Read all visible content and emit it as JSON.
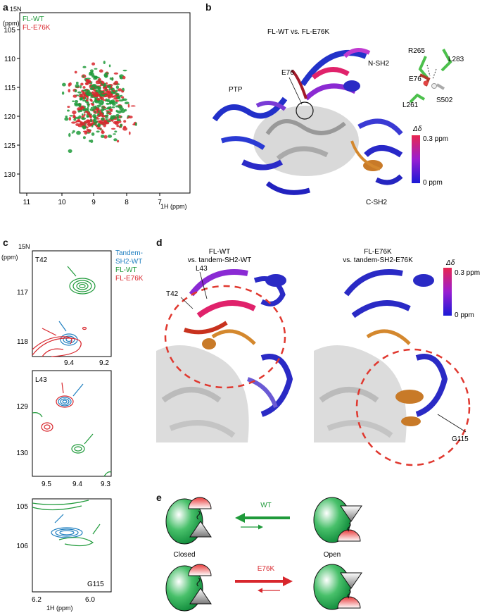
{
  "panel_labels": {
    "a": "a",
    "b": "b",
    "c": "c",
    "d": "d",
    "e": "e"
  },
  "colors": {
    "green": "#1f9a3a",
    "red": "#d8272d",
    "blue": "#1f7fc0",
    "dash": "#e0382f"
  },
  "panel_a": {
    "axis_y_label": "15N",
    "axis_y_unit": "(ppm)",
    "axis_x_label": "1H (ppm)",
    "legend": [
      "FL-WT",
      "FL-E76K"
    ],
    "y_ticks": [
      "105",
      "110",
      "115",
      "120",
      "125",
      "130"
    ],
    "x_ticks": [
      "11",
      "10",
      "9",
      "8",
      "7"
    ]
  },
  "panel_b": {
    "title": "FL-WT vs. FL-E76K",
    "labels": {
      "ptp": "PTP",
      "e76": "E76",
      "nsh2": "N-SH2",
      "csh2": "C-SH2"
    },
    "residues": {
      "r265": "R265",
      "l283": "L283",
      "e76": "E76",
      "l261": "L261",
      "s502": "S502"
    },
    "scale": {
      "symbol": "Δδ",
      "max": "0.3 ppm",
      "min": "0 ppm"
    }
  },
  "panel_c": {
    "axis_y_label": "15N",
    "axis_y_unit": "(ppm)",
    "legend": [
      "Tandem-",
      "SH2-WT",
      "FL-WT",
      "FL-E76K"
    ],
    "sub1": {
      "residue": "T42",
      "y_ticks": [
        "117",
        "118"
      ],
      "x_ticks": [
        "9.4",
        "9.2"
      ]
    },
    "sub2": {
      "residue": "L43",
      "y_ticks": [
        "129",
        "130"
      ],
      "x_ticks": [
        "9.5",
        "9.4",
        "9.3"
      ]
    },
    "sub3": {
      "residue": "G115",
      "y_ticks": [
        "105",
        "106"
      ],
      "x_ticks": [
        "6.2",
        "6.0"
      ]
    },
    "axis_x_label": "1H (ppm)"
  },
  "panel_d": {
    "left_title_1": "FL-WT",
    "left_title_2": "vs. tandem-SH2-WT",
    "right_title_1": "FL-E76K",
    "right_title_2": "vs. tandem-SH2-E76K",
    "labels": {
      "t42": "T42",
      "l43": "L43",
      "g115": "G115"
    },
    "scale": {
      "symbol": "Δδ",
      "max": "0.3 ppm",
      "min": "0 ppm"
    }
  },
  "panel_e": {
    "wt_label": "WT",
    "mut_label": "E76K",
    "closed": "Closed",
    "open": "Open"
  }
}
